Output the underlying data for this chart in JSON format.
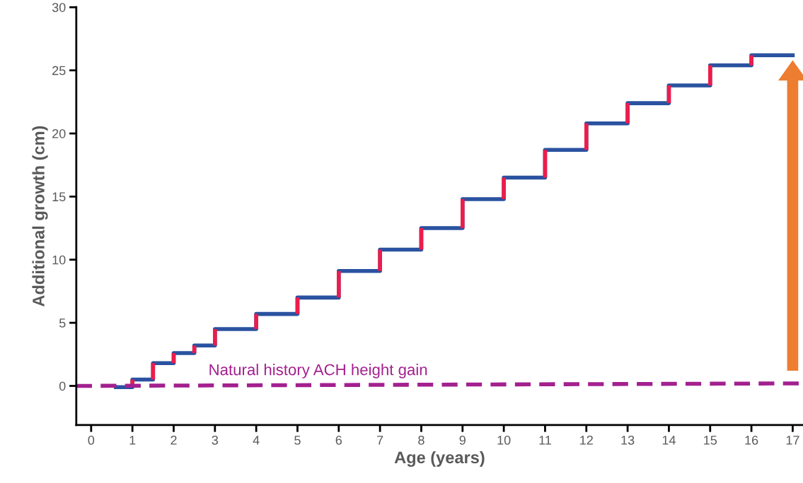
{
  "chart_data": {
    "type": "step",
    "xlabel": "Age (years)",
    "ylabel": "Additional growth (cm)",
    "xlim": [
      -0.36,
      17.25
    ],
    "xticks": [
      0,
      1,
      2,
      3,
      4,
      5,
      6,
      7,
      8,
      9,
      10,
      11,
      12,
      13,
      14,
      15,
      16,
      17
    ],
    "ylim": [
      -3.1,
      30
    ],
    "yticks": [
      0,
      5,
      10,
      15,
      20,
      25,
      30
    ],
    "grid": false,
    "legend": false,
    "series": [
      {
        "color": "#2a52a0",
        "colors": [
          "#ee1c4b",
          "#ee1c4b",
          "#ee1c4b",
          "#ee1c4b",
          "#ee1c4b",
          "#ee1c4b",
          "#ee1c4b",
          "#ee1c4b",
          "#ee1c4b",
          "#ee1c4b",
          "#ee1c4b",
          "#ee1c4b",
          "#ee1c4b",
          "#ee1c4b",
          "#ee1c4b",
          "#ee1c4b",
          "#ee1c4b",
          "#ee1c4b",
          "#ee1c4b",
          "#ee1c4b"
        ],
        "x": [
          0.6,
          1,
          1.5,
          2,
          2.5,
          3,
          4,
          5,
          6,
          7,
          8,
          9,
          10,
          11,
          12,
          13,
          14,
          15,
          16,
          17
        ],
        "values": [
          -0.1,
          0.5,
          1.8,
          2.6,
          3.2,
          4.5,
          5.7,
          7.0,
          9.1,
          10.8,
          12.5,
          14.8,
          16.5,
          18.7,
          20.8,
          22.4,
          23.8,
          25.4,
          26.2,
          26.2
        ]
      },
      {
        "type": "line",
        "name": "Natural history ACH height gain",
        "color": "#a3208f",
        "line_style": "dashed",
        "x": [
          -0.36,
          17.25
        ],
        "values": [
          0,
          0.2
        ]
      }
    ]
  }
}
